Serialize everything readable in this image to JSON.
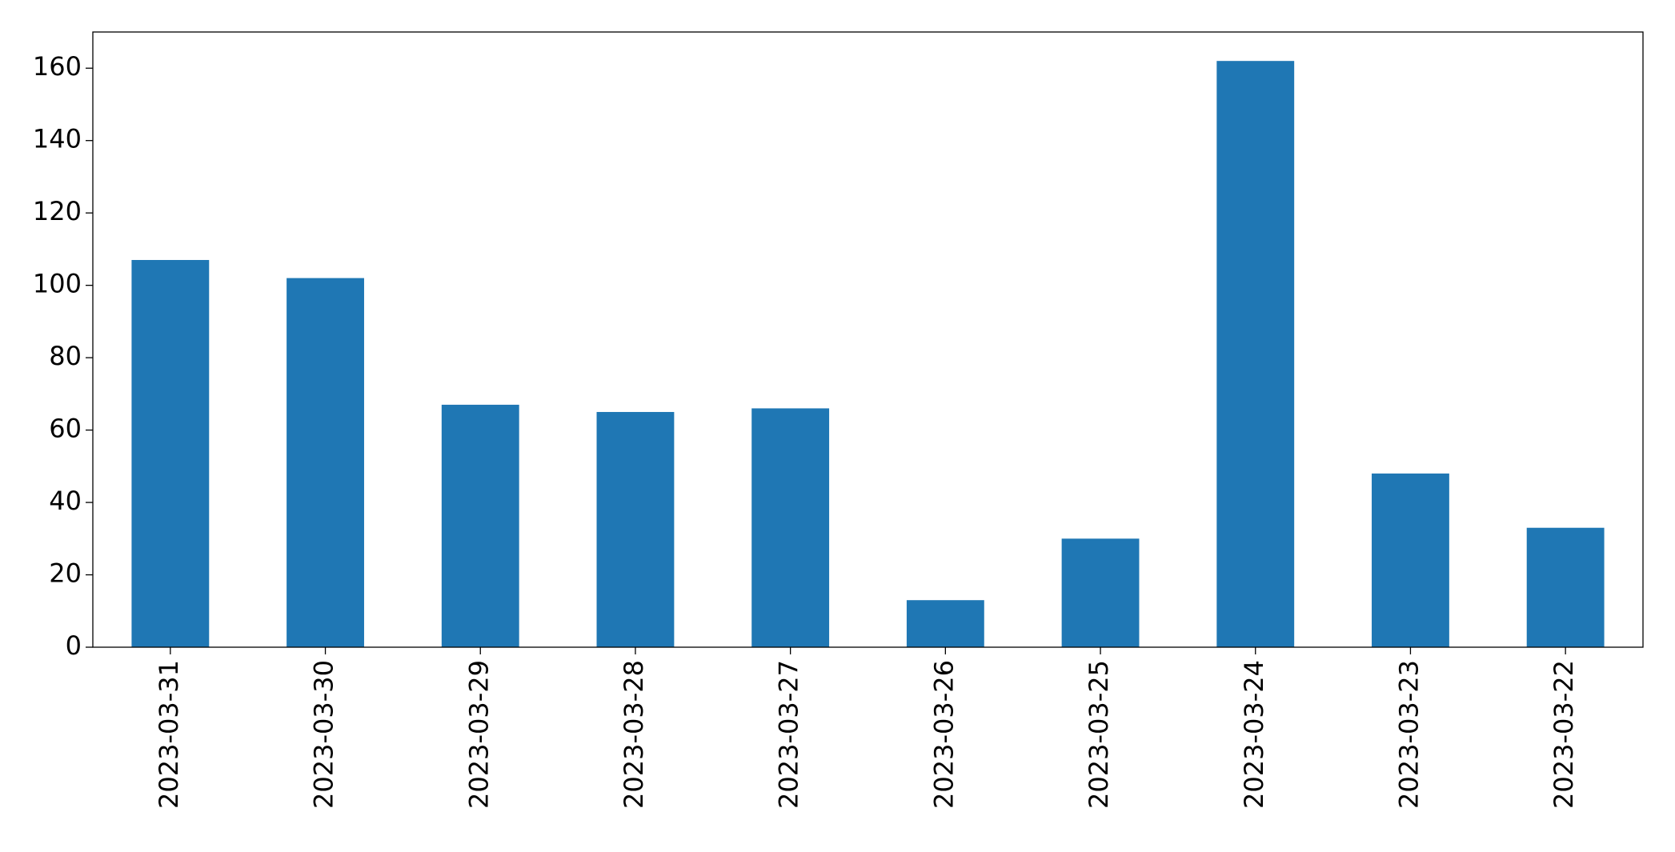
{
  "chart_data": {
    "type": "bar",
    "categories": [
      "2023-03-31",
      "2023-03-30",
      "2023-03-29",
      "2023-03-28",
      "2023-03-27",
      "2023-03-26",
      "2023-03-25",
      "2023-03-24",
      "2023-03-23",
      "2023-03-22"
    ],
    "values": [
      107,
      102,
      67,
      65,
      66,
      13,
      30,
      162,
      48,
      33
    ],
    "color": "#1f77b4",
    "ylim": [
      0,
      170
    ],
    "yticks": [
      0,
      20,
      40,
      60,
      80,
      100,
      120,
      140,
      160
    ],
    "grid": false
  }
}
